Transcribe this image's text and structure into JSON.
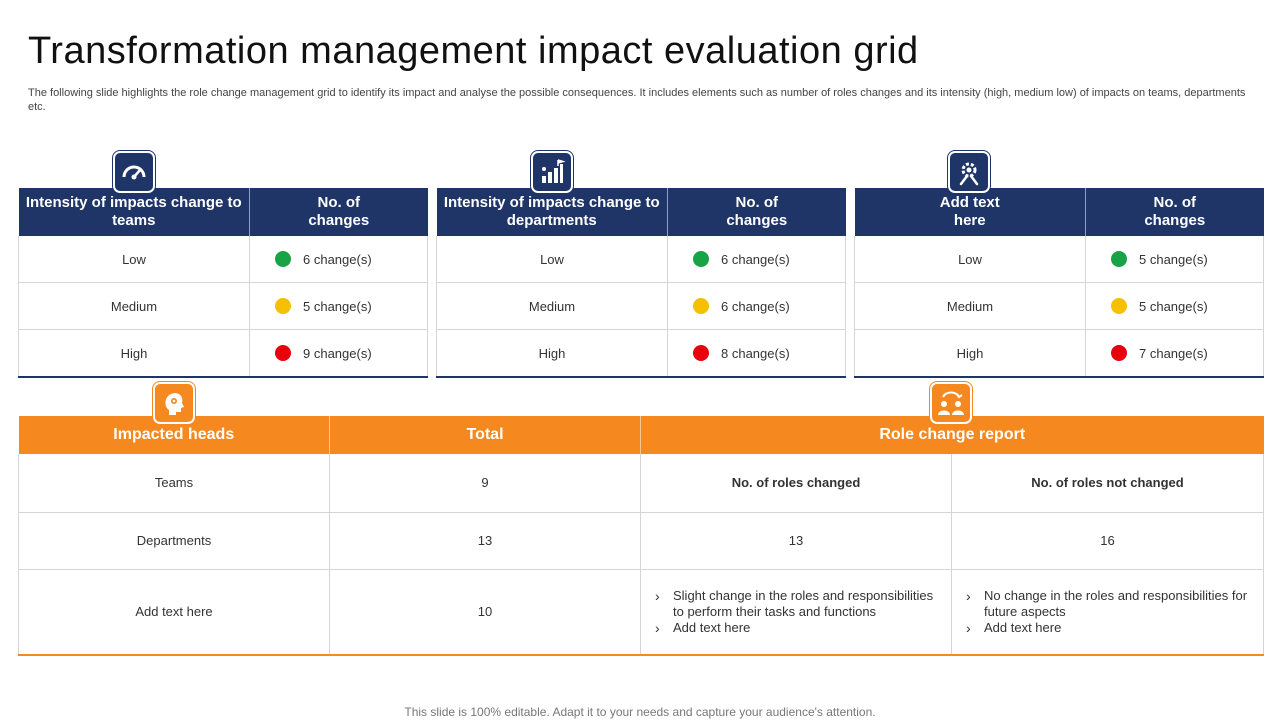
{
  "title": "Transformation management impact evaluation grid",
  "subtitle": "The following slide highlights the role change management grid to identify its impact and analyse the possible consequences. It includes elements such as number of roles changes and its intensity (high, medium low) of impacts on teams, departments etc.",
  "colors": {
    "navy": "#1f3568",
    "orange": "#f5891f",
    "low": "#19a347",
    "medium": "#f5c000",
    "high": "#e8000d"
  },
  "cards": [
    {
      "icon": "gauge-icon",
      "header_left": "Intensity of impacts change to teams",
      "header_right": "No. of changes",
      "rows": [
        {
          "level": "Low",
          "count": "6 change(s)"
        },
        {
          "level": "Medium",
          "count": "5 change(s)"
        },
        {
          "level": "High",
          "count": "9 change(s)"
        }
      ]
    },
    {
      "icon": "growth-chart-icon",
      "header_left": "Intensity of impacts change to departments",
      "header_right": "No. of changes",
      "rows": [
        {
          "level": "Low",
          "count": "6 change(s)"
        },
        {
          "level": "Medium",
          "count": "6 change(s)"
        },
        {
          "level": "High",
          "count": "8 change(s)"
        }
      ]
    },
    {
      "icon": "gear-tools-icon",
      "header_left": "Add text here",
      "header_right": "No. of changes",
      "rows": [
        {
          "level": "Low",
          "count": "5 change(s)"
        },
        {
          "level": "Medium",
          "count": "5 change(s)"
        },
        {
          "level": "High",
          "count": "7 change(s)"
        }
      ]
    }
  ],
  "bottom": {
    "headers": {
      "impacted": "Impacted heads",
      "total": "Total",
      "report": "Role change report"
    },
    "rows": {
      "teams": {
        "head": "Teams",
        "total": "9",
        "changed": "No. of roles changed",
        "not_changed": "No. of roles not changed"
      },
      "departments": {
        "head": "Departments",
        "total": "13",
        "changed": "13",
        "not_changed": "16"
      },
      "other": {
        "head": "Add text here",
        "total": "10",
        "changed_bullets": [
          "Slight change in the roles and responsibilities to perform their tasks and functions",
          "Add text here"
        ],
        "not_changed_bullets": [
          "No change in the roles and responsibilities for future aspects",
          "Add text here"
        ]
      }
    }
  },
  "footer": "This slide is 100% editable. Adapt it to your needs and capture your audience's attention."
}
